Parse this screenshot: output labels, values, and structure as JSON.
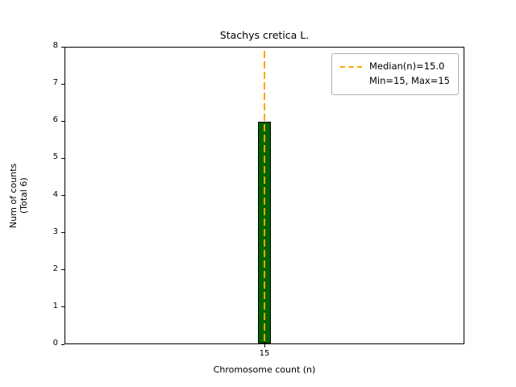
{
  "chart_data": {
    "type": "bar",
    "title": "Stachys cretica L.",
    "xlabel": "Chromosome count (n)",
    "ylabel": "Num of counts",
    "ylabel_secondary": "(Total 6)",
    "categories": [
      "15"
    ],
    "values": [
      6
    ],
    "total": 6,
    "ylim": [
      0,
      8
    ],
    "yticks": [
      0,
      1,
      2,
      3,
      4,
      5,
      6,
      7,
      8
    ],
    "xticks": [
      "15"
    ],
    "grid": false,
    "bar_color": "#006400",
    "bar_edge_color": "#000000",
    "median_line": {
      "x": "15",
      "value": 15.0,
      "color": "#FFA500",
      "style": "dashed"
    },
    "legend": {
      "position": "upper right",
      "entries": [
        "Median(n)=15.0",
        "Min=15, Max=15"
      ]
    }
  }
}
